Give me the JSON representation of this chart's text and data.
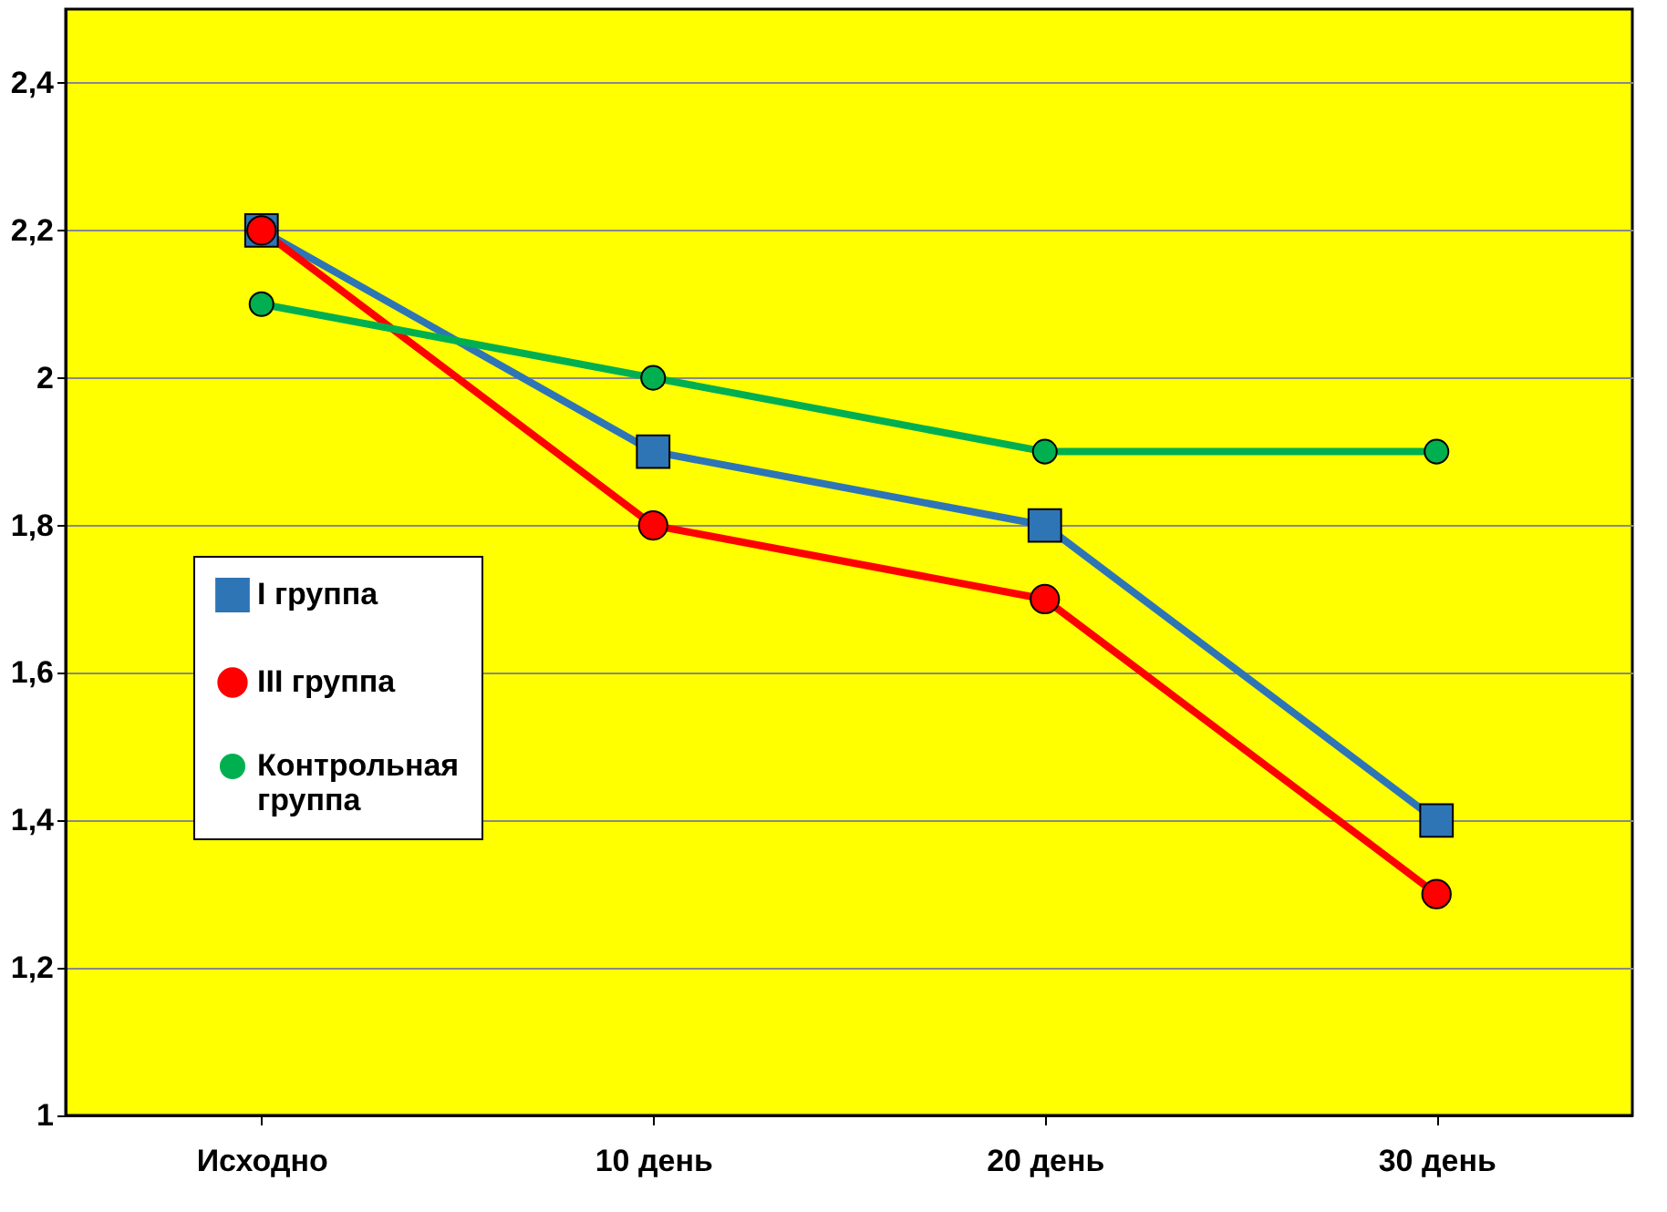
{
  "chart_data": {
    "type": "line",
    "categories": [
      "Исходно",
      "10 день",
      "20 день",
      "30 день"
    ],
    "series": [
      {
        "name": "I группа",
        "color": "#2e75b6",
        "marker": "square",
        "values": [
          2.2,
          1.9,
          1.8,
          1.4
        ]
      },
      {
        "name": "III группа",
        "color": "#ff0000",
        "marker": "circle",
        "values": [
          2.2,
          1.8,
          1.7,
          1.3
        ]
      },
      {
        "name": "Контрольная группа",
        "color": "#00b050",
        "marker": "circle",
        "values": [
          2.1,
          2.0,
          1.9,
          1.9
        ]
      }
    ],
    "ylim": [
      1,
      2.5
    ],
    "yticks": [
      1,
      {
        "value": 1.2,
        "label": "1,2"
      },
      {
        "value": 1.4,
        "label": "1,4"
      },
      {
        "value": 1.6,
        "label": "1,6"
      },
      {
        "value": 1.8,
        "label": "1,8"
      },
      2,
      {
        "value": 2.2,
        "label": "2,2"
      },
      {
        "value": 2.4,
        "label": "2,4"
      }
    ],
    "grid": "y",
    "legend": "bottom left",
    "line_style": "solid"
  }
}
